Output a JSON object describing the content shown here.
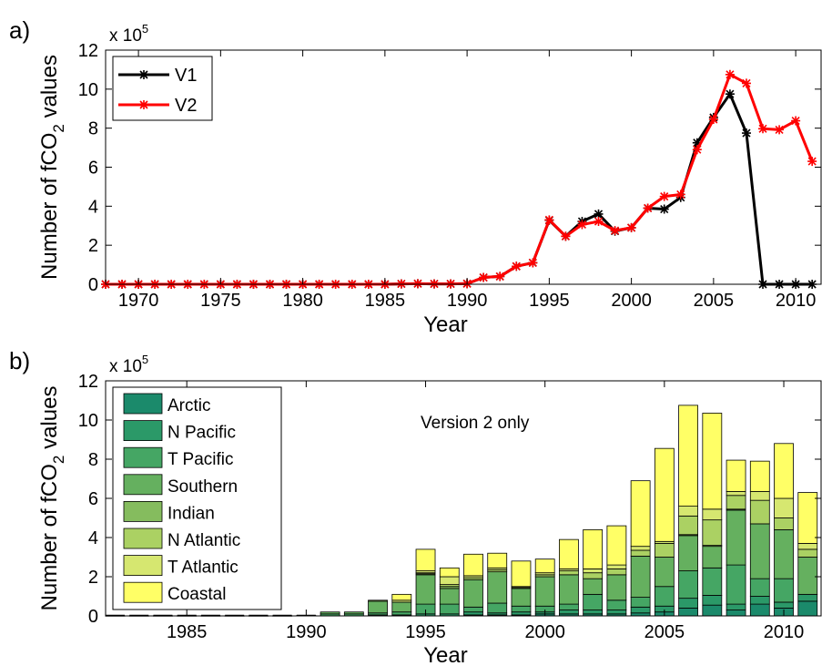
{
  "chart_data": [
    {
      "panel_label": "a)",
      "type": "line",
      "multiplier": "x 10",
      "multiplier_exp": "5",
      "xlabel": "Year",
      "ylabel": {
        "main": "Number of fCO",
        "sub": "2",
        "tail": " values"
      },
      "xlim": [
        1968,
        2011.6
      ],
      "ylim": [
        0,
        12
      ],
      "xticks": [
        1970,
        1975,
        1980,
        1985,
        1990,
        1995,
        2000,
        2005,
        2010
      ],
      "yticks": [
        0,
        2,
        4,
        6,
        8,
        10,
        12
      ],
      "legend_position": "top-left",
      "grid": false,
      "x": [
        1968,
        1969,
        1970,
        1971,
        1972,
        1973,
        1974,
        1975,
        1976,
        1977,
        1978,
        1979,
        1980,
        1981,
        1982,
        1983,
        1984,
        1985,
        1986,
        1987,
        1988,
        1989,
        1990,
        1991,
        1992,
        1993,
        1994,
        1995,
        1996,
        1997,
        1998,
        1999,
        2000,
        2001,
        2002,
        2003,
        2004,
        2005,
        2006,
        2007,
        2008,
        2009,
        2010,
        2011
      ],
      "series": [
        {
          "name": "V1",
          "color": "#000000",
          "values": [
            0,
            0,
            0,
            0,
            0,
            0,
            0,
            0,
            0,
            0,
            0,
            0,
            0,
            0,
            0,
            0,
            0,
            0,
            0.02,
            0.03,
            0.02,
            0.02,
            0.03,
            0.35,
            0.4,
            0.92,
            1.1,
            3.28,
            2.46,
            3.22,
            3.6,
            2.72,
            2.9,
            3.9,
            3.85,
            4.45,
            7.25,
            8.55,
            9.75,
            7.75,
            0,
            0,
            0,
            0
          ]
        },
        {
          "name": "V2",
          "color": "#ff0000",
          "values": [
            0,
            0,
            0,
            0,
            0,
            0,
            0,
            0,
            0,
            0,
            0,
            0,
            0,
            0,
            0,
            0,
            0,
            0,
            0.02,
            0.03,
            0.02,
            0.02,
            0.03,
            0.35,
            0.4,
            0.92,
            1.1,
            3.3,
            2.46,
            3.06,
            3.22,
            2.75,
            2.9,
            3.9,
            4.5,
            4.6,
            6.9,
            8.45,
            10.75,
            10.3,
            7.97,
            7.92,
            8.38,
            6.3
          ]
        }
      ]
    },
    {
      "panel_label": "b)",
      "type": "bar",
      "stacked": true,
      "multiplier": "x 10",
      "multiplier_exp": "5",
      "annotation": "Version 2 only",
      "xlabel": "Year",
      "ylabel": {
        "main": "Number of fCO",
        "sub": "2",
        "tail": " values"
      },
      "xlim": [
        1981.6,
        2011.6
      ],
      "ylim": [
        0,
        12
      ],
      "xticks": [
        1985,
        1990,
        1995,
        2000,
        2005,
        2010
      ],
      "yticks": [
        0,
        2,
        4,
        6,
        8,
        10,
        12
      ],
      "legend_position": "top-left",
      "grid": false,
      "x": [
        1982,
        1983,
        1984,
        1985,
        1986,
        1987,
        1988,
        1989,
        1990,
        1991,
        1992,
        1993,
        1994,
        1995,
        1996,
        1997,
        1998,
        1999,
        2000,
        2001,
        2002,
        2003,
        2004,
        2005,
        2006,
        2007,
        2008,
        2009,
        2010,
        2011
      ],
      "series": [
        {
          "name": "Arctic",
          "color": "#1b8a6b",
          "values": [
            0,
            0,
            0,
            0,
            0,
            0,
            0,
            0,
            0,
            0,
            0,
            0,
            0,
            0,
            0,
            0.05,
            0.05,
            0.05,
            0.1,
            0.1,
            0.1,
            0.1,
            0.15,
            0.2,
            0.4,
            0.55,
            0.3,
            0.6,
            0.4,
            0.75
          ]
        },
        {
          "name": "N Pacific",
          "color": "#2b9968",
          "values": [
            0,
            0,
            0,
            0,
            0,
            0,
            0,
            0,
            0,
            0,
            0,
            0.05,
            0.05,
            0.1,
            0.1,
            0.15,
            0.1,
            0.15,
            0.1,
            0.2,
            0.2,
            0.2,
            0.3,
            0.3,
            0.5,
            0.5,
            0.3,
            0.4,
            0.3,
            0.35
          ]
        },
        {
          "name": "T Pacific",
          "color": "#45a664",
          "values": [
            0.01,
            0.01,
            0.01,
            0.01,
            0.01,
            0.01,
            0.01,
            0.01,
            0.02,
            0.1,
            0.1,
            0.1,
            0.15,
            0.5,
            0.5,
            0.25,
            0.5,
            0.3,
            0.3,
            0.3,
            0.8,
            0.5,
            0.5,
            1.0,
            1.4,
            1.4,
            2.0,
            0.9,
            1.2,
            0
          ]
        },
        {
          "name": "Southern",
          "color": "#65b05f",
          "values": [
            0,
            0,
            0,
            0,
            0,
            0,
            0,
            0,
            0,
            0.1,
            0.1,
            0.6,
            0.5,
            1.5,
            0.8,
            1.4,
            1.6,
            0.9,
            1.5,
            1.5,
            0.8,
            1.3,
            2.1,
            1.5,
            1.8,
            1.1,
            2.8,
            2.8,
            2.5,
            1.9
          ]
        },
        {
          "name": "Indian",
          "color": "#85bc5e",
          "values": [
            0,
            0,
            0,
            0,
            0,
            0,
            0,
            0,
            0,
            0,
            0,
            0,
            0,
            0.05,
            0.1,
            0,
            0,
            0,
            0,
            0,
            0,
            0,
            0,
            0,
            0.05,
            0.05,
            0.05,
            0,
            0,
            0
          ]
        },
        {
          "name": "N Atlantic",
          "color": "#abd163",
          "values": [
            0,
            0,
            0,
            0,
            0,
            0,
            0,
            0,
            0,
            0,
            0,
            0.05,
            0,
            0.05,
            0.1,
            0.1,
            0.1,
            0.05,
            0.1,
            0.2,
            0.3,
            0.3,
            0.3,
            0.7,
            0.95,
            1.3,
            0.7,
            1.2,
            0.6,
            0.4
          ]
        },
        {
          "name": "T Atlantic",
          "color": "#d6e770",
          "values": [
            0,
            0,
            0,
            0,
            0,
            0,
            0,
            0,
            0,
            0,
            0,
            0,
            0.1,
            0.1,
            0.4,
            0.1,
            0.1,
            0.05,
            0.1,
            0.1,
            0.2,
            0.2,
            0.2,
            0.1,
            0.5,
            0.55,
            0.2,
            0.45,
            1.0,
            0.3
          ]
        },
        {
          "name": "Coastal",
          "color": "#ffff66",
          "values": [
            0,
            0,
            0,
            0,
            0,
            0,
            0,
            0,
            0,
            0,
            0,
            0,
            0.3,
            1.1,
            0.45,
            1.1,
            0.75,
            1.3,
            0.7,
            1.5,
            2.0,
            2.0,
            3.35,
            4.75,
            5.15,
            4.9,
            1.6,
            1.55,
            2.8,
            2.6
          ]
        }
      ]
    }
  ]
}
